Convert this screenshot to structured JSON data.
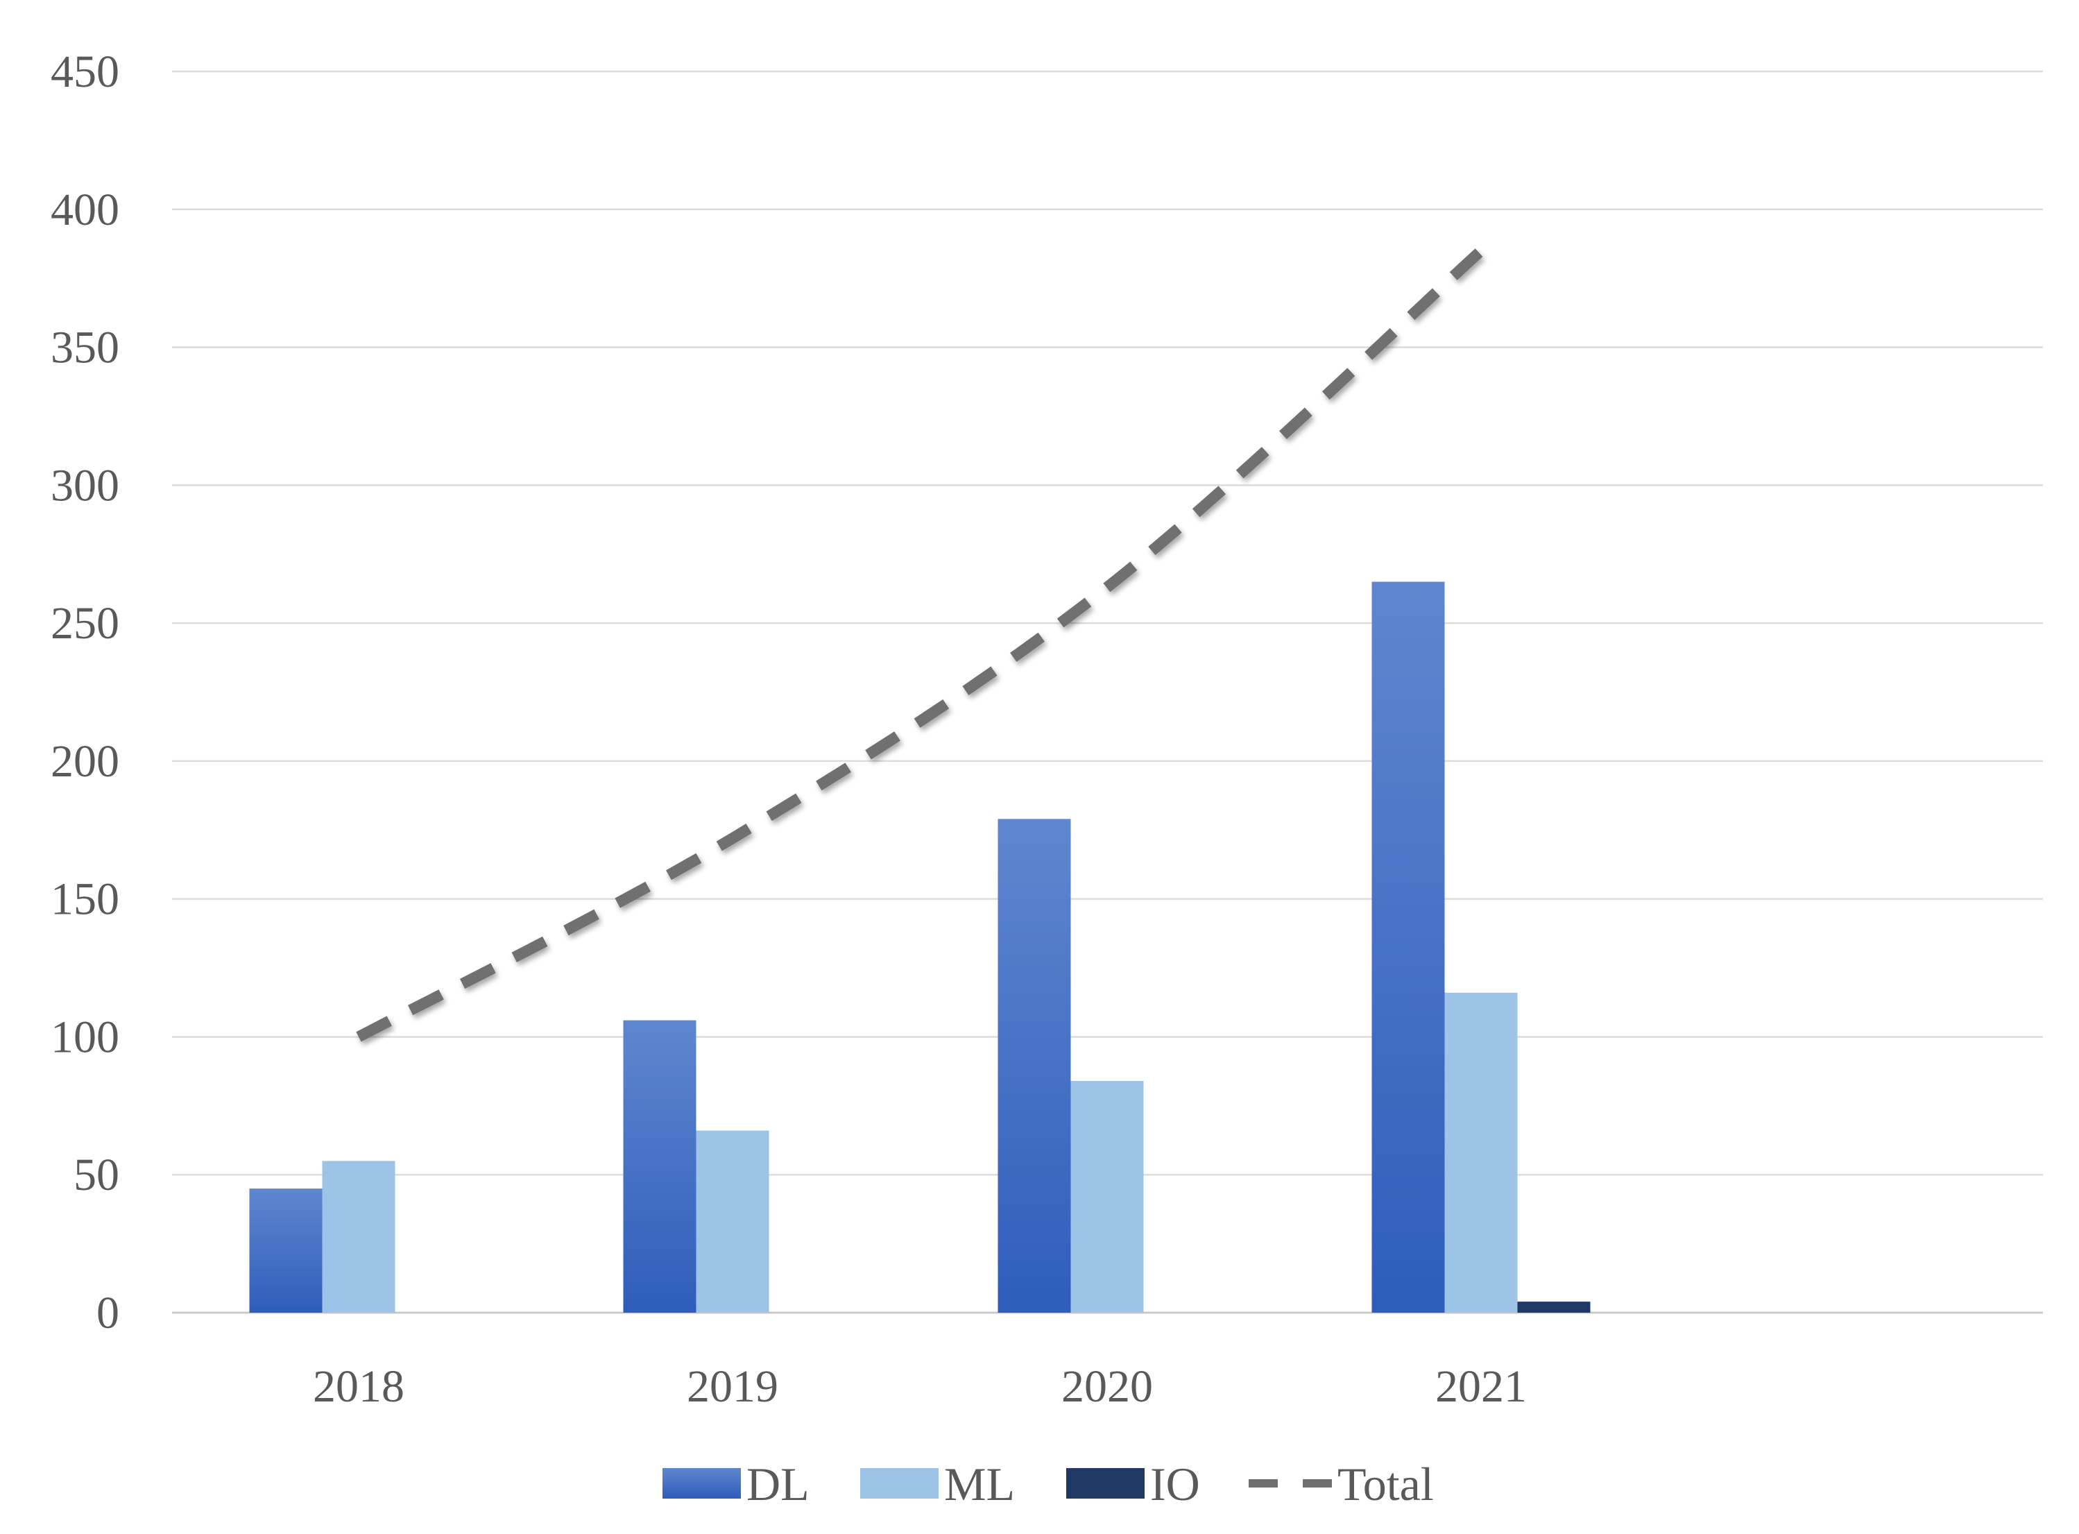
{
  "chart_data": {
    "type": "bar",
    "categories": [
      "2018",
      "2019",
      "2020",
      "2021"
    ],
    "series": [
      {
        "name": "DL",
        "type": "bar",
        "values": [
          45,
          106,
          179,
          265
        ],
        "color": "#3A6CC6"
      },
      {
        "name": "ML",
        "type": "bar",
        "values": [
          55,
          66,
          84,
          116
        ],
        "color": "#9DC3E6"
      },
      {
        "name": "IO",
        "type": "bar",
        "values": [
          0,
          0,
          0,
          4
        ],
        "color": "#1F3864"
      },
      {
        "name": "Total",
        "type": "line",
        "style": "dashed",
        "values": [
          100,
          172,
          263,
          385
        ],
        "color": "#707070"
      }
    ],
    "yticks": [
      "0",
      "50",
      "100",
      "150",
      "200",
      "250",
      "300",
      "350",
      "400",
      "450"
    ],
    "ylim": [
      0,
      450
    ],
    "grid": true,
    "legend_position": "bottom"
  }
}
